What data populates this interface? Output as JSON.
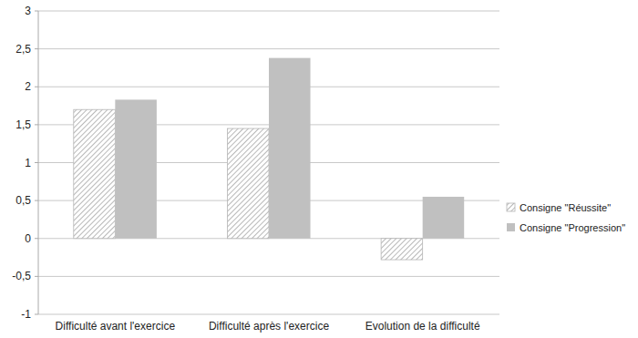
{
  "chart_data": {
    "type": "bar",
    "categories": [
      "Difficulté avant l'exercice",
      "Difficulté après l'exercice",
      "Evolution de la difficulté"
    ],
    "series": [
      {
        "name": "Consigne \"Réussite\"",
        "color": "#9a9a9a",
        "values": [
          1.7,
          1.45,
          -0.28
        ]
      },
      {
        "name": "Consigne \"Progression\"",
        "color": "#c0c0c0",
        "values": [
          1.83,
          2.38,
          0.55
        ]
      }
    ],
    "ylim": [
      -1,
      3
    ],
    "yticks": [
      -1,
      {
        "value": -0.5,
        "label": "-0,5"
      },
      0,
      {
        "value": 0.5,
        "label": "0,5"
      },
      1,
      {
        "value": 1.5,
        "label": "1,5"
      },
      2,
      {
        "value": 2.5,
        "label": "2,5"
      },
      3
    ],
    "grid": true,
    "legend": "right"
  }
}
